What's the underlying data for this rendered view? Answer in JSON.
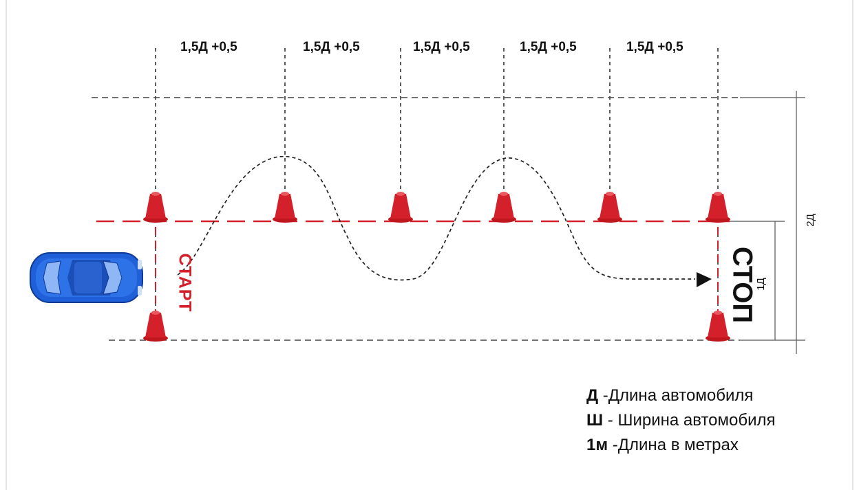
{
  "spacing_labels": [
    "1,5Д +0,5",
    "1,5Д +0,5",
    "1,5Д +0,5",
    "1,5Д +0,5",
    "1,5Д +0,5"
  ],
  "dimensions": {
    "total_width": "2Д",
    "lane_width": "1Д"
  },
  "start_label": "СТАРТ",
  "stop_label": "СТОП",
  "legend": [
    {
      "symbol": "Д",
      "text": " -Длина автомобиля"
    },
    {
      "symbol": "Ш",
      "text": " - Ширина автомобиля"
    },
    {
      "symbol": "1м",
      "text": " -Длина в метрах"
    }
  ],
  "colors": {
    "cone": "#d4202a",
    "line": "#d4202a",
    "car": "#1f5fd8",
    "guide": "#333333"
  },
  "icons": {
    "car": "car-icon",
    "cone": "traffic-cone-icon",
    "arrow": "arrow-head-icon"
  }
}
